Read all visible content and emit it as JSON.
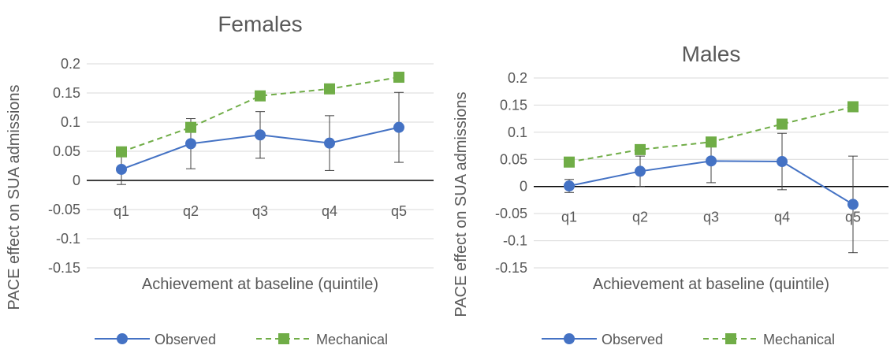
{
  "chart_data": [
    {
      "type": "line",
      "title": "Females",
      "xlabel": "Achievement at baseline (quintile)",
      "ylabel": "PACE effect on SUA admissions",
      "categories": [
        "q1",
        "q2",
        "q3",
        "q4",
        "q5"
      ],
      "ylim": [
        -0.15,
        0.2
      ],
      "yticks": [
        "0.2",
        "0.15",
        "0.1",
        "0.05",
        "0",
        "-0.05",
        "-0.1",
        "-0.15"
      ],
      "grid": true,
      "legend_position": "bottom",
      "series": [
        {
          "name": "Observed",
          "color": "#4472C4",
          "style": "solid",
          "marker": "circle",
          "values": [
            0.019,
            0.063,
            0.078,
            0.064,
            0.091
          ],
          "error_low": [
            -0.007,
            0.02,
            0.038,
            0.017,
            0.031
          ],
          "error_high": [
            0.045,
            0.106,
            0.118,
            0.111,
            0.151
          ]
        },
        {
          "name": "Mechanical",
          "color": "#70AD47",
          "style": "dashed",
          "marker": "square",
          "values": [
            0.049,
            0.091,
            0.145,
            0.157,
            0.177
          ]
        }
      ]
    },
    {
      "type": "line",
      "title": "Males",
      "xlabel": "Achievement at baseline (quintile)",
      "ylabel": "PACE effect on SUA admissions",
      "categories": [
        "q1",
        "q2",
        "q3",
        "q4",
        "q5"
      ],
      "ylim": [
        -0.15,
        0.2
      ],
      "yticks": [
        "0.2",
        "0.15",
        "0.1",
        "0.05",
        "0",
        "-0.05",
        "-0.1",
        "-0.15"
      ],
      "grid": true,
      "legend_position": "bottom",
      "series": [
        {
          "name": "Observed",
          "color": "#4472C4",
          "style": "solid",
          "marker": "circle",
          "values": [
            0.001,
            0.028,
            0.047,
            0.046,
            -0.033
          ],
          "error_low": [
            -0.011,
            0.0,
            0.007,
            -0.006,
            -0.122
          ],
          "error_high": [
            0.013,
            0.056,
            0.087,
            0.098,
            0.056
          ]
        },
        {
          "name": "Mechanical",
          "color": "#70AD47",
          "style": "dashed",
          "marker": "square",
          "values": [
            0.045,
            0.068,
            0.082,
            0.115,
            0.147
          ]
        }
      ]
    }
  ]
}
